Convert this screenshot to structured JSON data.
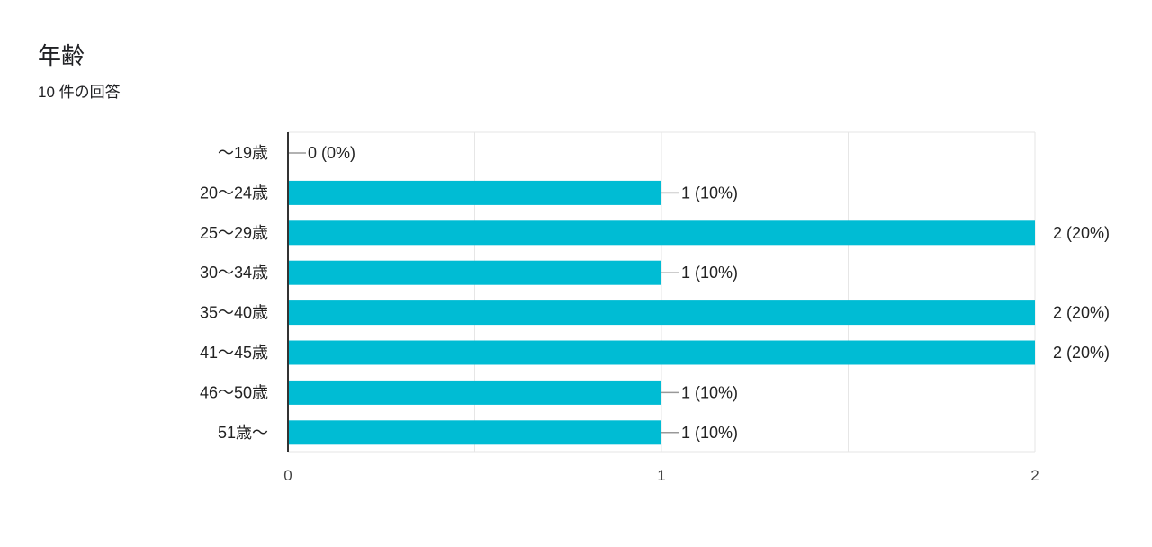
{
  "header": {
    "title": "年齢",
    "subtitle": "10 件の回答"
  },
  "colors": {
    "bar": "#00bcd4",
    "grid": "#e6e6e6",
    "axis": "#333333",
    "leader": "#999999"
  },
  "chart_data": {
    "type": "bar",
    "orientation": "horizontal",
    "categories": [
      "〜19歳",
      "20〜24歳",
      "25〜29歳",
      "30〜34歳",
      "35〜40歳",
      "41〜45歳",
      "46〜50歳",
      "51歳〜"
    ],
    "values": [
      0,
      1,
      2,
      1,
      2,
      2,
      1,
      1
    ],
    "data_labels": [
      "0 (0%)",
      "1 (10%)",
      "2 (20%)",
      "1 (10%)",
      "2 (20%)",
      "2 (20%)",
      "1 (10%)",
      "1 (10%)"
    ],
    "xlim": [
      0,
      2
    ],
    "xticks": [
      "0",
      "1",
      "2"
    ],
    "grid": true,
    "legend": "none"
  }
}
